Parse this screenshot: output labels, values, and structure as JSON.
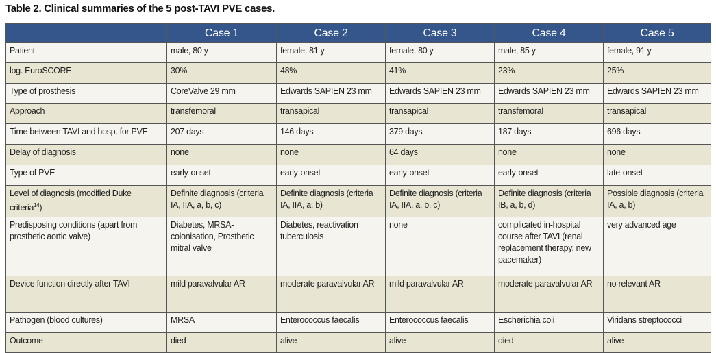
{
  "title": "Table 2. Clinical summaries of the 5 post-TAVI PVE cases.",
  "columns": [
    "Case 1",
    "Case 2",
    "Case 3",
    "Case 4",
    "Case 5"
  ],
  "rows": [
    {
      "label": "Patient",
      "cells": [
        "male, 80 y",
        "female, 81 y",
        "female, 80 y",
        "male, 85 y",
        "female, 91 y"
      ]
    },
    {
      "label": "log. EuroSCORE",
      "cells": [
        "30%",
        "48%",
        "41%",
        "23%",
        "25%"
      ]
    },
    {
      "label": "Type of prosthesis",
      "cells": [
        "CoreValve 29 mm",
        "Edwards SAPIEN 23 mm",
        "Edwards SAPIEN 23 mm",
        "Edwards SAPIEN 23 mm",
        "Edwards SAPIEN 23 mm"
      ]
    },
    {
      "label": "Approach",
      "cells": [
        "transfemoral",
        "transapical",
        "transapical",
        "transfemoral",
        "transapical"
      ]
    },
    {
      "label": "Time between TAVI and hosp. for PVE",
      "cells": [
        "207 days",
        "146 days",
        "379 days",
        "187 days",
        "696 days"
      ]
    },
    {
      "label": "Delay of diagnosis",
      "cells": [
        "none",
        "none",
        "64 days",
        "none",
        "none"
      ]
    },
    {
      "label": "Type of PVE",
      "cells": [
        "early-onset",
        "early-onset",
        "early-onset",
        "early-onset",
        "late-onset"
      ]
    },
    {
      "label": "Level of diagnosis (modified Duke criteria",
      "sup": "14",
      "label_end": ")",
      "cells": [
        "Definite diagnosis (criteria IA, IIA, a, b, c)",
        "Definite diagnosis (criteria IA, IIA, a, b)",
        "Definite diagnosis (criteria IA, IIA, a, b, c)",
        "Definite diagnosis (criteria IB, a, b, d)",
        "Possible diagnosis (criteria IA, a, b)"
      ]
    },
    {
      "label": "Predisposing conditions (apart from prosthetic aortic valve)",
      "cells": [
        "Diabetes, MRSA-colonisation, Prosthetic mitral valve",
        "Diabetes, reactivation tuberculosis",
        "none",
        "complicated in-hospital course after TAVI (renal replacement therapy, new pacemaker)",
        "very advanced age"
      ]
    },
    {
      "label": "Device function directly after TAVI",
      "cells": [
        "mild paravalvular AR",
        "moderate paravalvular AR",
        "mild paravalvular AR",
        "moderate paravalvular AR",
        "no relevant AR"
      ]
    },
    {
      "label": "Pathogen (blood cultures)",
      "cells": [
        "MRSA",
        "Enterococcus faecalis",
        "Enterococcus faecalis",
        "Escherichia coli",
        "Viridans streptococci"
      ]
    },
    {
      "label": "Outcome",
      "cells": [
        "died",
        "alive",
        "alive",
        "died",
        "alive"
      ]
    }
  ],
  "colors": {
    "header": "#34568b",
    "row_light": "#f5f4ee",
    "row_dark": "#e8e5d2"
  }
}
